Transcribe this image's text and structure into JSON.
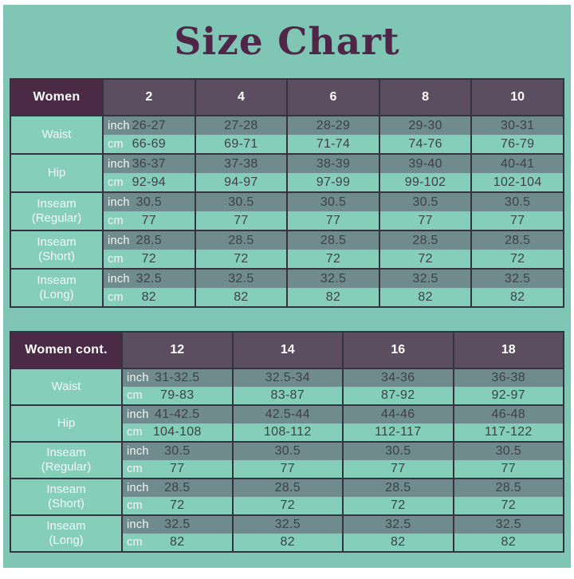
{
  "title": "Size Chart",
  "units": {
    "inch": "inch",
    "cm": "cm"
  },
  "colors": {
    "background_teal": "#80c6b4",
    "frame_white": "#ffffff",
    "title_purple": "#4f2648",
    "header_label_bg": "#4a2a45",
    "header_size_bg": "#5b4e60",
    "header_text": "#ffffff",
    "row_label_bg": "#85ceba",
    "inch_row_bg": "#6f8b8e",
    "cm_row_bg": "#85ceba",
    "value_text": "#3e4146",
    "unit_text": "#f0f8f4",
    "border": "#35333f"
  },
  "tables": [
    {
      "name": "Women",
      "sizes": [
        "2",
        "4",
        "6",
        "8",
        "10"
      ],
      "rows": [
        {
          "label": "Waist",
          "sublabel": "",
          "inch": [
            "26-27",
            "27-28",
            "28-29",
            "29-30",
            "30-31"
          ],
          "cm": [
            "66-69",
            "69-71",
            "71-74",
            "74-76",
            "76-79"
          ]
        },
        {
          "label": "Hip",
          "sublabel": "",
          "inch": [
            "36-37",
            "37-38",
            "38-39",
            "39-40",
            "40-41"
          ],
          "cm": [
            "92-94",
            "94-97",
            "97-99",
            "99-102",
            "102-104"
          ]
        },
        {
          "label": "Inseam",
          "sublabel": "(Regular)",
          "inch": [
            "30.5",
            "30.5",
            "30.5",
            "30.5",
            "30.5"
          ],
          "cm": [
            "77",
            "77",
            "77",
            "77",
            "77"
          ]
        },
        {
          "label": "Inseam",
          "sublabel": "(Short)",
          "inch": [
            "28.5",
            "28.5",
            "28.5",
            "28.5",
            "28.5"
          ],
          "cm": [
            "72",
            "72",
            "72",
            "72",
            "72"
          ]
        },
        {
          "label": "Inseam",
          "sublabel": "(Long)",
          "inch": [
            "32.5",
            "32.5",
            "32.5",
            "32.5",
            "32.5"
          ],
          "cm": [
            "82",
            "82",
            "82",
            "82",
            "82"
          ]
        }
      ]
    },
    {
      "name": "Women cont.",
      "sizes": [
        "12",
        "14",
        "16",
        "18"
      ],
      "rows": [
        {
          "label": "Waist",
          "sublabel": "",
          "inch": [
            "31-32.5",
            "32.5-34",
            "34-36",
            "36-38"
          ],
          "cm": [
            "79-83",
            "83-87",
            "87-92",
            "92-97"
          ]
        },
        {
          "label": "Hip",
          "sublabel": "",
          "inch": [
            "41-42.5",
            "42.5-44",
            "44-46",
            "46-48"
          ],
          "cm": [
            "104-108",
            "108-112",
            "112-117",
            "117-122"
          ]
        },
        {
          "label": "Inseam",
          "sublabel": "(Regular)",
          "inch": [
            "30.5",
            "30.5",
            "30.5",
            "30.5"
          ],
          "cm": [
            "77",
            "77",
            "77",
            "77"
          ]
        },
        {
          "label": "Inseam",
          "sublabel": "(Short)",
          "inch": [
            "28.5",
            "28.5",
            "28.5",
            "28.5"
          ],
          "cm": [
            "72",
            "72",
            "72",
            "72"
          ]
        },
        {
          "label": "Inseam",
          "sublabel": "(Long)",
          "inch": [
            "32.5",
            "32.5",
            "32.5",
            "32.5"
          ],
          "cm": [
            "82",
            "82",
            "82",
            "82"
          ]
        }
      ]
    }
  ]
}
